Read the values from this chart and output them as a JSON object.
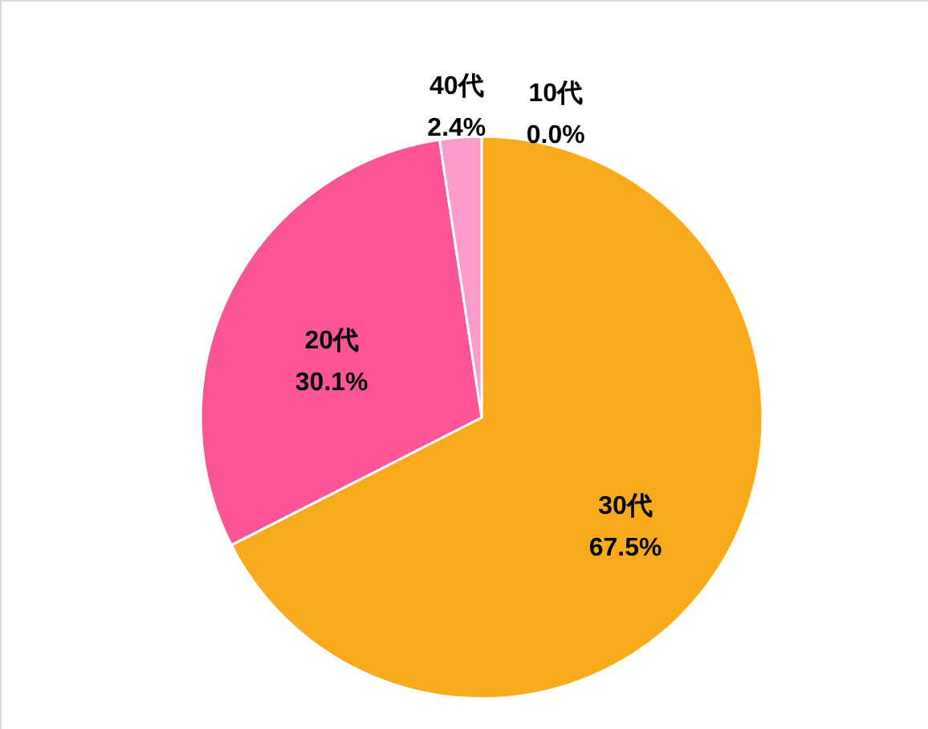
{
  "chart_data": {
    "type": "pie",
    "categories": [
      "10代",
      "30代",
      "20代",
      "40代"
    ],
    "values": [
      0.0,
      67.5,
      30.1,
      2.4
    ],
    "colors": [
      "#4472c4",
      "#f9ab1d",
      "#fd5595",
      "#fd9bcb"
    ],
    "value_labels": [
      "0.0%",
      "67.5%",
      "30.1%",
      "2.4%"
    ]
  }
}
